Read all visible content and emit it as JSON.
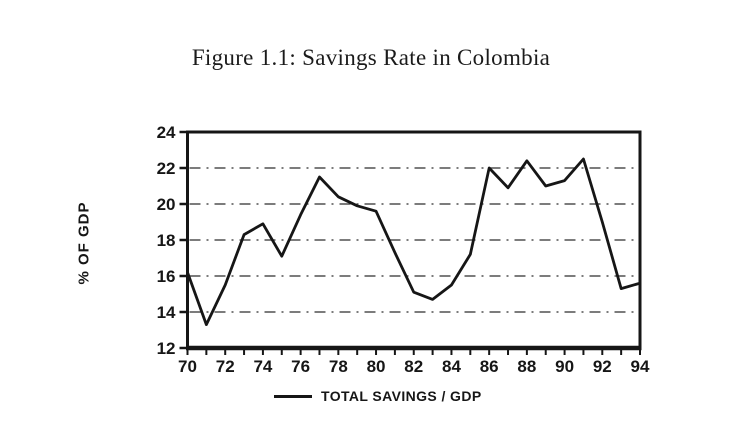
{
  "figure": {
    "title": "Figure 1.1: Savings Rate in Colombia"
  },
  "chart_data": {
    "type": "line",
    "title": "Figure 1.1: Savings Rate in Colombia",
    "xlabel": "",
    "ylabel": "% OF GDP",
    "x": [
      70,
      71,
      72,
      73,
      74,
      75,
      76,
      77,
      78,
      79,
      80,
      81,
      82,
      83,
      84,
      85,
      86,
      87,
      88,
      89,
      90,
      91,
      92,
      93,
      94
    ],
    "series": [
      {
        "name": "TOTAL SAVINGS / GDP",
        "values": [
          16.2,
          13.3,
          15.5,
          18.3,
          18.9,
          17.1,
          19.4,
          21.5,
          20.4,
          19.9,
          19.6,
          17.3,
          15.1,
          14.7,
          15.5,
          17.2,
          22.0,
          20.9,
          22.4,
          21.0,
          21.3,
          22.5,
          19.0,
          15.3,
          15.6
        ]
      }
    ],
    "xlim": [
      70,
      94
    ],
    "ylim": [
      12,
      24
    ],
    "y_ticks": [
      24,
      22,
      20,
      18,
      16,
      14,
      12
    ],
    "x_tick_labels": [
      "70",
      "72",
      "74",
      "76",
      "78",
      "80",
      "82",
      "84",
      "86",
      "88",
      "90",
      "92",
      "94"
    ],
    "grid_values": [
      22,
      20,
      18,
      16,
      14
    ],
    "grid_style": "dash-dot",
    "legend_position": "bottom",
    "line_color": "#161616",
    "frame_color": "#161616"
  }
}
